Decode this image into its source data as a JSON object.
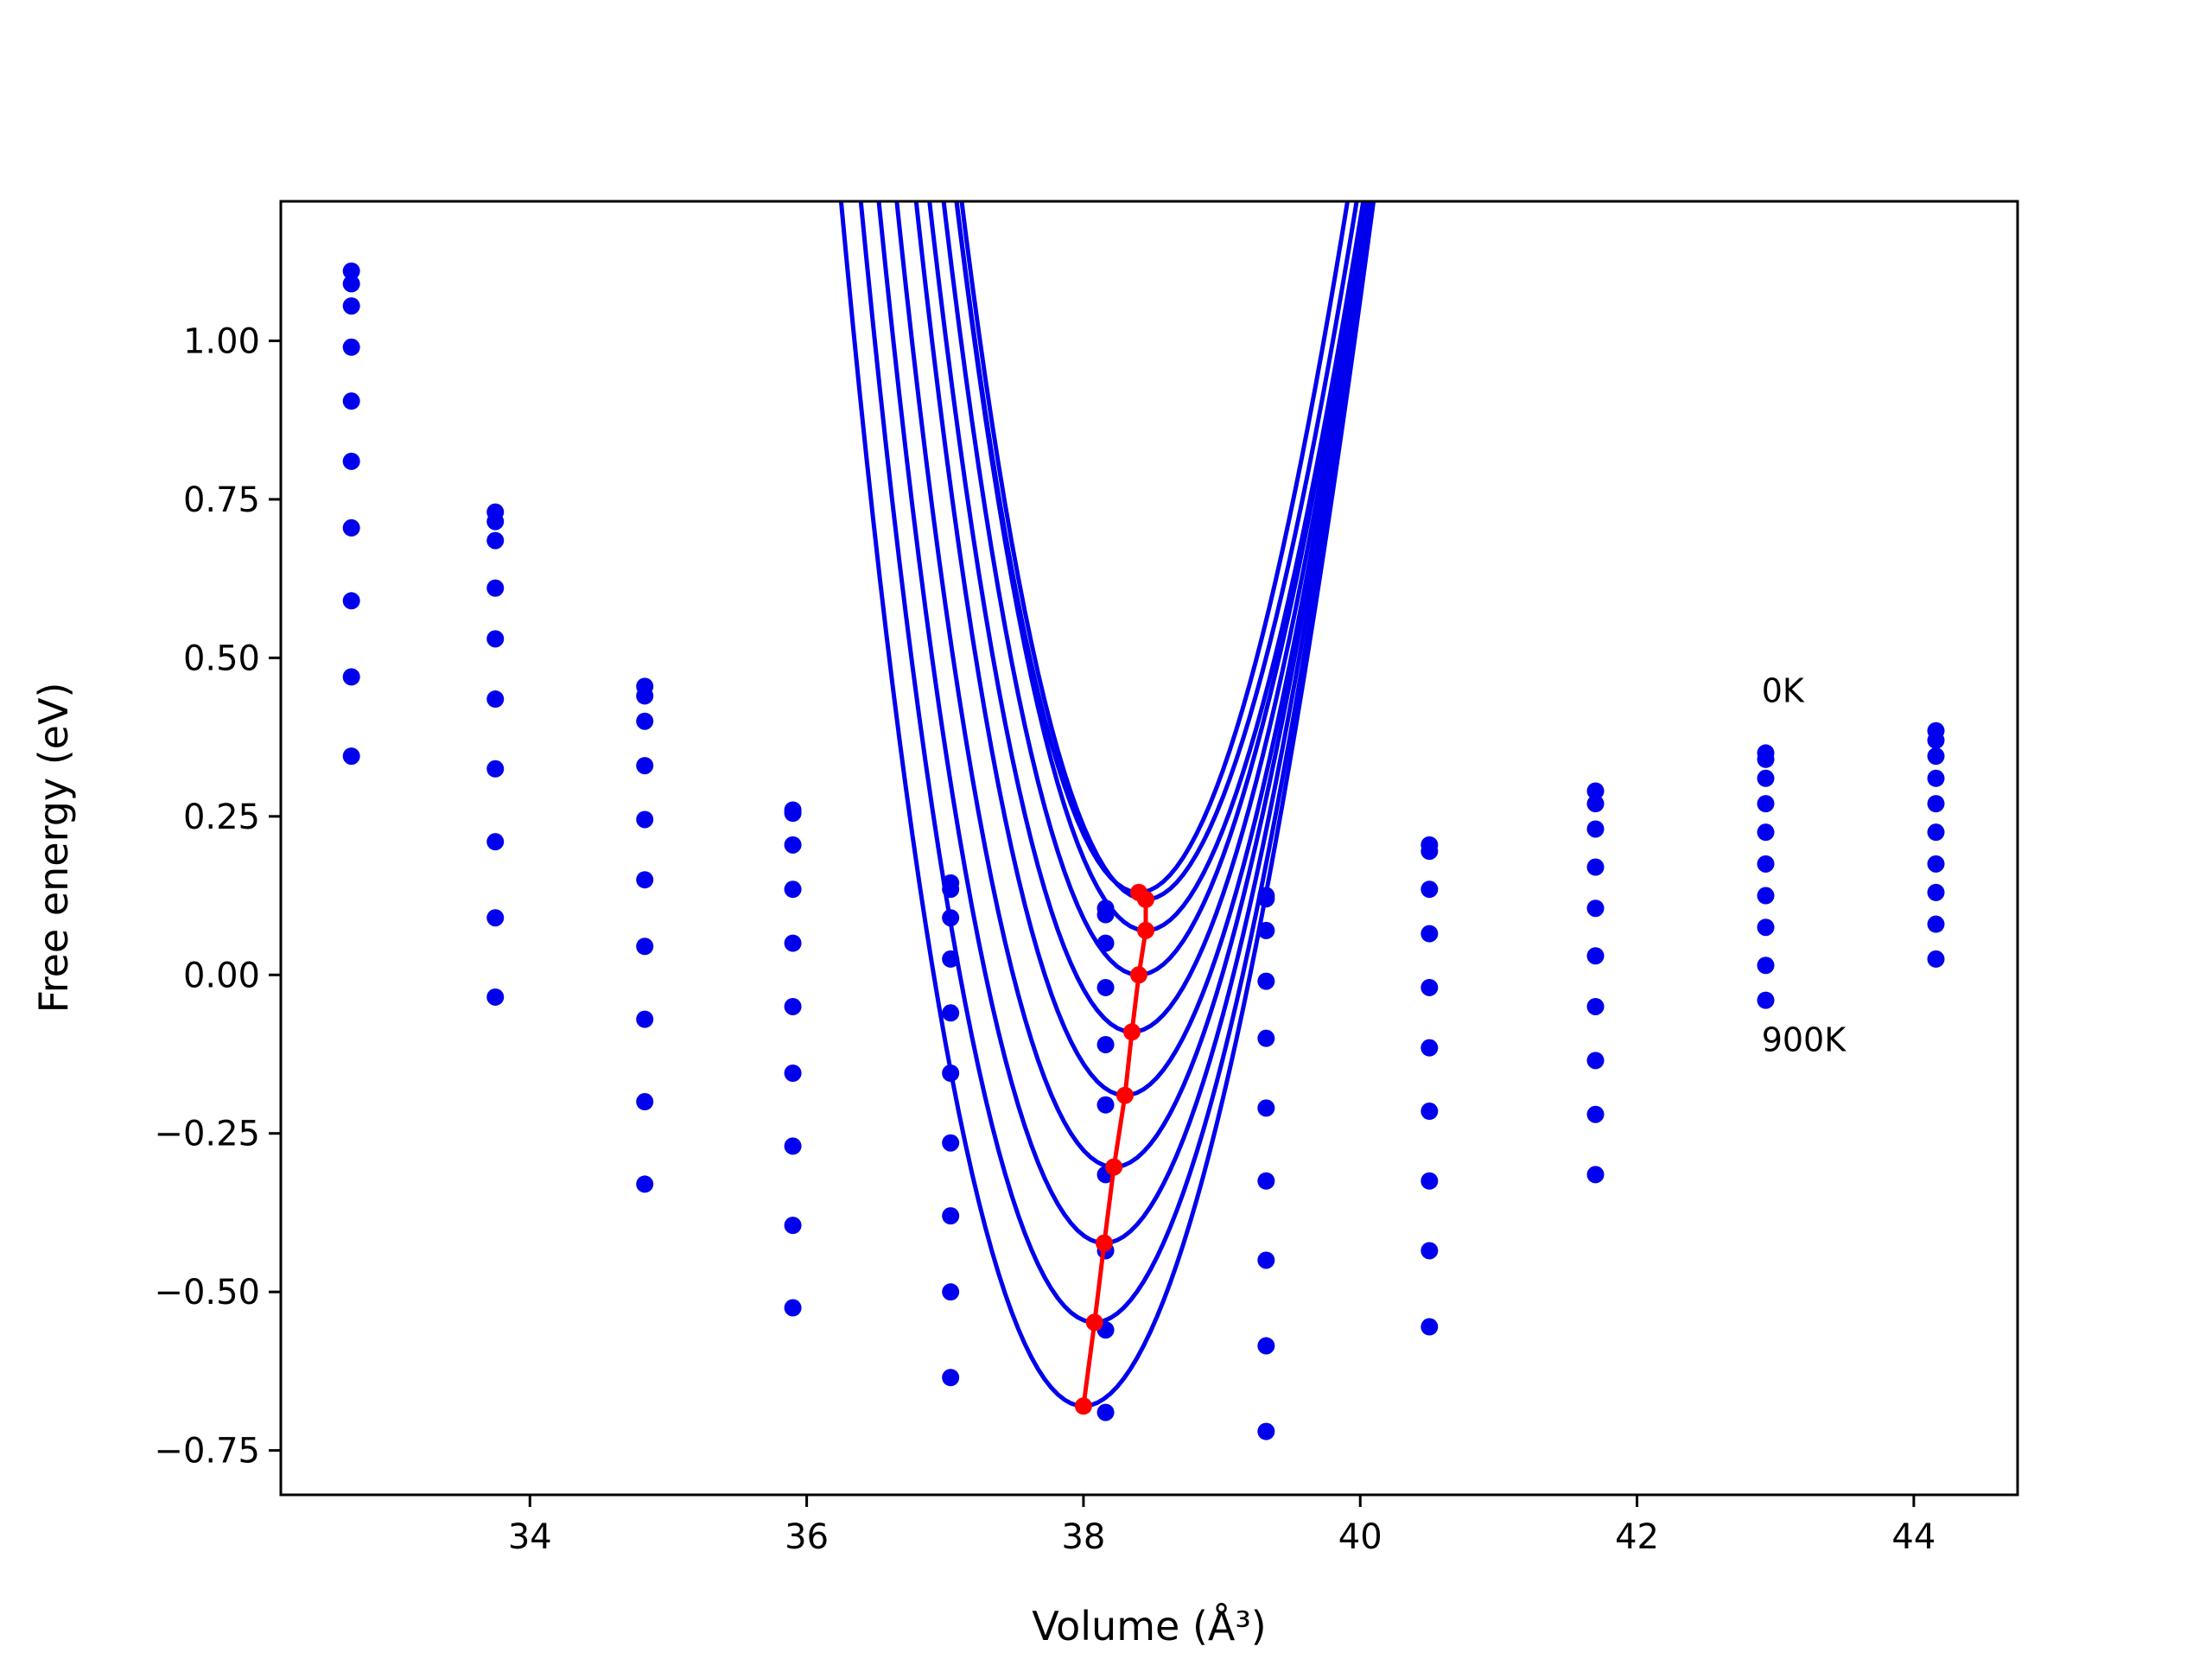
{
  "chart_data": {
    "type": "line",
    "xlabel": "Volume (Å³)",
    "ylabel": "Free energy (eV)",
    "xlim": [
      32.2,
      44.75
    ],
    "ylim": [
      -0.82,
      1.22
    ],
    "grid": false,
    "xticks": [
      34,
      36,
      38,
      40,
      42,
      44
    ],
    "xtick_labels": [
      "34",
      "36",
      "38",
      "40",
      "42",
      "44"
    ],
    "yticks": [
      1.0,
      0.75,
      0.5,
      0.25,
      0.0,
      -0.25,
      -0.5,
      -0.75
    ],
    "ytick_labels": [
      "1.00",
      "0.75",
      "0.50",
      "0.25",
      "0.00",
      "−0.25",
      "−0.50",
      "−0.75"
    ],
    "annotations": [
      {
        "text": "0K",
        "x": 42.9,
        "y": 0.43
      },
      {
        "text": "900K",
        "x": 42.9,
        "y": -0.12
      }
    ],
    "colors": {
      "series": "#0000ee",
      "minimum_path": "#ff0000",
      "axes": "#000000"
    },
    "volumes": [
      32.71,
      33.75,
      34.83,
      35.9,
      37.04,
      38.16,
      39.32,
      40.5,
      41.7,
      42.93,
      44.16
    ],
    "curves": [
      {
        "min_volume": 38.4,
        "min_energy": 0.13,
        "c": 0.096
      },
      {
        "min_volume": 38.45,
        "min_energy": 0.119,
        "c": 0.0955
      },
      {
        "min_volume": 38.45,
        "min_energy": 0.07,
        "c": 0.0948
      },
      {
        "min_volume": 38.4,
        "min_energy": 0.0,
        "c": 0.0945
      },
      {
        "min_volume": 38.35,
        "min_energy": -0.09,
        "c": 0.0942
      },
      {
        "min_volume": 38.3,
        "min_energy": -0.19,
        "c": 0.0945
      },
      {
        "min_volume": 38.22,
        "min_energy": -0.303,
        "c": 0.0942
      },
      {
        "min_volume": 38.15,
        "min_energy": -0.423,
        "c": 0.094
      },
      {
        "min_volume": 38.08,
        "min_energy": -0.548,
        "c": 0.0938
      },
      {
        "min_volume": 38.0,
        "min_energy": -0.68,
        "c": 0.0935
      }
    ],
    "scatter_points": [
      [
        32.71,
        1.11
      ],
      [
        32.71,
        1.09
      ],
      [
        32.71,
        1.055
      ],
      [
        32.71,
        0.99
      ],
      [
        32.71,
        0.905
      ],
      [
        32.71,
        0.81
      ],
      [
        32.71,
        0.705
      ],
      [
        32.71,
        0.59
      ],
      [
        32.71,
        0.47
      ],
      [
        32.71,
        0.345
      ],
      [
        33.75,
        0.73
      ],
      [
        33.75,
        0.715
      ],
      [
        33.75,
        0.685
      ],
      [
        33.75,
        0.61
      ],
      [
        33.75,
        0.53
      ],
      [
        33.75,
        0.435
      ],
      [
        33.75,
        0.325
      ],
      [
        33.75,
        0.21
      ],
      [
        33.75,
        0.09
      ],
      [
        33.75,
        -0.035
      ],
      [
        34.83,
        0.455
      ],
      [
        34.83,
        0.44
      ],
      [
        34.83,
        0.4
      ],
      [
        34.83,
        0.33
      ],
      [
        34.83,
        0.245
      ],
      [
        34.83,
        0.15
      ],
      [
        34.83,
        0.045
      ],
      [
        34.83,
        -0.07
      ],
      [
        34.83,
        -0.2
      ],
      [
        34.83,
        -0.33
      ],
      [
        35.9,
        0.26
      ],
      [
        35.9,
        0.255
      ],
      [
        35.9,
        0.205
      ],
      [
        35.9,
        0.135
      ],
      [
        35.9,
        0.05
      ],
      [
        35.9,
        -0.05
      ],
      [
        35.9,
        -0.155
      ],
      [
        35.9,
        -0.27
      ],
      [
        35.9,
        -0.395
      ],
      [
        35.9,
        -0.525
      ],
      [
        37.04,
        0.145
      ],
      [
        37.04,
        0.135
      ],
      [
        37.04,
        0.09
      ],
      [
        37.04,
        0.025
      ],
      [
        37.04,
        -0.06
      ],
      [
        37.04,
        -0.155
      ],
      [
        37.04,
        -0.265
      ],
      [
        37.04,
        -0.38
      ],
      [
        37.04,
        -0.5
      ],
      [
        37.04,
        -0.635
      ],
      [
        38.16,
        0.105
      ],
      [
        38.16,
        0.095
      ],
      [
        38.16,
        0.05
      ],
      [
        38.16,
        -0.02
      ],
      [
        38.16,
        -0.11
      ],
      [
        38.16,
        -0.205
      ],
      [
        38.16,
        -0.315
      ],
      [
        38.16,
        -0.435
      ],
      [
        38.16,
        -0.56
      ],
      [
        38.16,
        -0.69
      ],
      [
        39.32,
        0.125
      ],
      [
        39.32,
        0.12
      ],
      [
        39.32,
        0.07
      ],
      [
        39.32,
        -0.01
      ],
      [
        39.32,
        -0.1
      ],
      [
        39.32,
        -0.21
      ],
      [
        39.32,
        -0.325
      ],
      [
        39.32,
        -0.45
      ],
      [
        39.32,
        -0.585
      ],
      [
        39.32,
        -0.72
      ],
      [
        40.5,
        0.205
      ],
      [
        40.5,
        0.195
      ],
      [
        40.5,
        0.135
      ],
      [
        40.5,
        0.065
      ],
      [
        40.5,
        -0.02
      ],
      [
        40.5,
        -0.115
      ],
      [
        40.5,
        -0.215
      ],
      [
        40.5,
        -0.325
      ],
      [
        40.5,
        -0.435
      ],
      [
        40.5,
        -0.555
      ],
      [
        41.7,
        0.29
      ],
      [
        41.7,
        0.27
      ],
      [
        41.7,
        0.23
      ],
      [
        41.7,
        0.17
      ],
      [
        41.7,
        0.105
      ],
      [
        41.7,
        0.03
      ],
      [
        41.7,
        -0.05
      ],
      [
        41.7,
        -0.135
      ],
      [
        41.7,
        -0.22
      ],
      [
        41.7,
        -0.315
      ],
      [
        42.93,
        0.35
      ],
      [
        42.93,
        0.34
      ],
      [
        42.93,
        0.31
      ],
      [
        42.93,
        0.27
      ],
      [
        42.93,
        0.225
      ],
      [
        42.93,
        0.175
      ],
      [
        42.93,
        0.125
      ],
      [
        42.93,
        0.075
      ],
      [
        42.93,
        0.015
      ],
      [
        42.93,
        -0.04
      ],
      [
        44.16,
        0.385
      ],
      [
        44.16,
        0.37
      ],
      [
        44.16,
        0.345
      ],
      [
        44.16,
        0.31
      ],
      [
        44.16,
        0.27
      ],
      [
        44.16,
        0.225
      ],
      [
        44.16,
        0.175
      ],
      [
        44.16,
        0.13
      ],
      [
        44.16,
        0.08
      ],
      [
        44.16,
        0.025
      ]
    ],
    "minimum_path": [
      [
        38.4,
        0.13
      ],
      [
        38.45,
        0.119
      ],
      [
        38.45,
        0.07
      ],
      [
        38.4,
        0.0
      ],
      [
        38.35,
        -0.09
      ],
      [
        38.3,
        -0.19
      ],
      [
        38.22,
        -0.303
      ],
      [
        38.15,
        -0.423
      ],
      [
        38.08,
        -0.548
      ],
      [
        38.0,
        -0.68
      ]
    ]
  }
}
